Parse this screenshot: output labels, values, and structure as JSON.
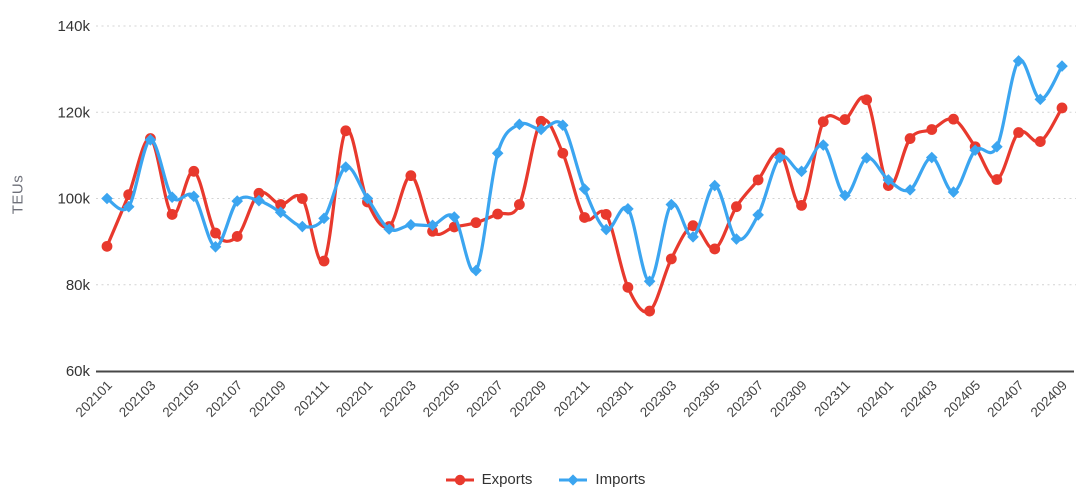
{
  "chart_data": {
    "type": "line",
    "title": "",
    "xlabel": "",
    "ylabel": "TEUs",
    "smooth": true,
    "grid": true,
    "legend_position": "bottom",
    "ylim": [
      60000,
      140000
    ],
    "ytick_interval": 20000,
    "ytick_labels": [
      "60k",
      "80k",
      "100k",
      "120k",
      "140k"
    ],
    "x_tick_step": 2,
    "x": [
      "202101",
      "202102",
      "202103",
      "202104",
      "202105",
      "202106",
      "202107",
      "202108",
      "202109",
      "202110",
      "202111",
      "202112",
      "202201",
      "202202",
      "202203",
      "202204",
      "202205",
      "202206",
      "202207",
      "202208",
      "202209",
      "202210",
      "202211",
      "202212",
      "202301",
      "202302",
      "202303",
      "202304",
      "202305",
      "202306",
      "202307",
      "202308",
      "202309",
      "202310",
      "202311",
      "202312",
      "202401",
      "202402",
      "202403",
      "202404",
      "202405",
      "202406",
      "202407",
      "202408",
      "202409"
    ],
    "series": [
      {
        "name": "Exports",
        "color": "#e8392d",
        "symbol": "circle",
        "values": [
          88900,
          100900,
          113900,
          96300,
          106300,
          92000,
          91200,
          101200,
          98600,
          100000,
          85500,
          115700,
          99200,
          93500,
          105300,
          92400,
          93400,
          94400,
          96400,
          98600,
          117900,
          110500,
          95600,
          96300,
          79400,
          73900,
          86000,
          93700,
          88300,
          98100,
          104300,
          110600,
          98400,
          117800,
          118300,
          122900,
          103000,
          113900,
          116000,
          118400,
          112000,
          104400,
          115300,
          113200,
          121000
        ]
      },
      {
        "name": "Imports",
        "color": "#3ba5f0",
        "symbol": "diamond",
        "values": [
          100000,
          98100,
          113600,
          100300,
          100500,
          88800,
          99400,
          99500,
          96800,
          93500,
          95400,
          107300,
          100000,
          92900,
          93900,
          93800,
          95700,
          83300,
          110500,
          117200,
          116000,
          117000,
          102200,
          92800,
          97600,
          80800,
          98600,
          91100,
          103000,
          90600,
          96200,
          109500,
          106300,
          112400,
          100700,
          109400,
          104300,
          102000,
          109500,
          101500,
          111200,
          112000,
          131900,
          123000,
          130700
        ]
      }
    ]
  },
  "colors": {
    "background": "#ffffff",
    "axis_line": "#474747",
    "y_tick_label": "#333333",
    "x_tick_label": "#444444",
    "axis_title": "#6e7079",
    "gridline": "#d4d4d4",
    "legend_text": "#333333"
  }
}
